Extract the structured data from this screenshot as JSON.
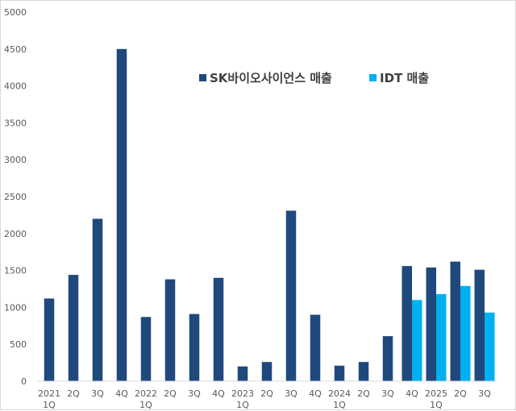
{
  "chart_data": {
    "type": "bar",
    "title": "",
    "xlabel": "",
    "ylabel": "",
    "ylim": [
      0,
      5000
    ],
    "yticks": [
      0,
      500,
      1000,
      1500,
      2000,
      2500,
      3000,
      3500,
      4000,
      4500,
      5000
    ],
    "grid": false,
    "legend_position": "top-right",
    "categories": [
      [
        "2021",
        "1Q"
      ],
      [
        "2Q"
      ],
      [
        "3Q"
      ],
      [
        "4Q"
      ],
      [
        "2022",
        "1Q"
      ],
      [
        "2Q"
      ],
      [
        "3Q"
      ],
      [
        "4Q"
      ],
      [
        "2023",
        "1Q"
      ],
      [
        "2Q"
      ],
      [
        "3Q"
      ],
      [
        "4Q"
      ],
      [
        "2024",
        "1Q"
      ],
      [
        "2Q"
      ],
      [
        "3Q"
      ],
      [
        "4Q"
      ],
      [
        "2025",
        "1Q"
      ],
      [
        "2Q"
      ],
      [
        "3Q"
      ]
    ],
    "series": [
      {
        "name": "SK바이오사이언스 매출",
        "color": "#1f497d",
        "values": [
          1120,
          1440,
          2200,
          4500,
          870,
          1380,
          910,
          1400,
          200,
          260,
          2310,
          900,
          210,
          260,
          610,
          1560,
          1540,
          1620,
          1510
        ]
      },
      {
        "name": "IDT 매출",
        "color": "#00b0f0",
        "values": [
          null,
          null,
          null,
          null,
          null,
          null,
          null,
          null,
          null,
          null,
          null,
          null,
          null,
          null,
          null,
          1100,
          1180,
          1290,
          930
        ]
      }
    ]
  }
}
